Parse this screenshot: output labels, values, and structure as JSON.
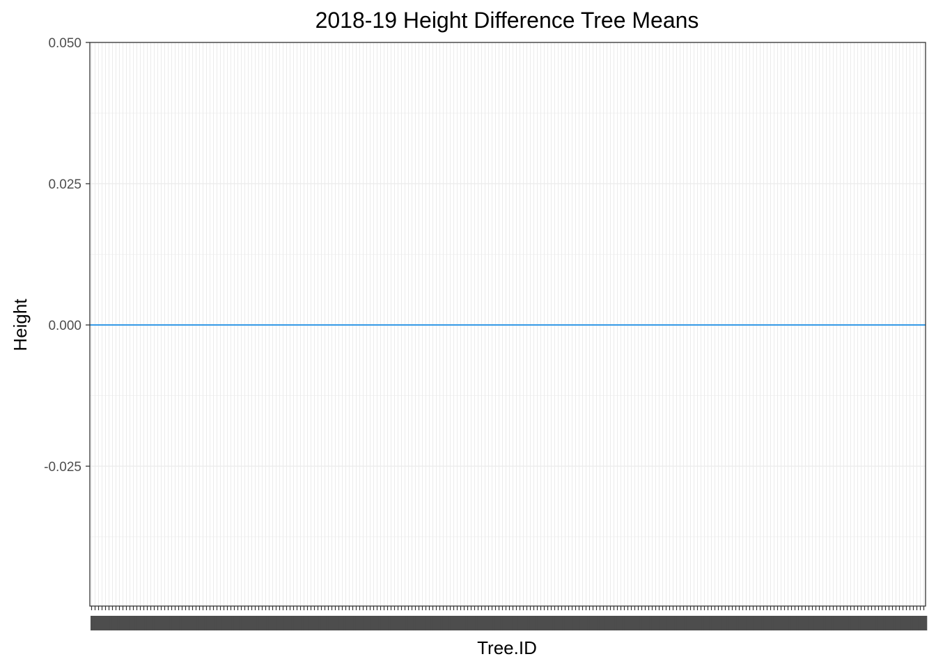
{
  "chart_data": {
    "type": "line",
    "title": "2018-19 Height Difference Tree Means",
    "xlabel": "Tree.ID",
    "ylabel": "Height",
    "ylim": [
      -0.05,
      0.05
    ],
    "yticks": [
      0.05,
      0.025,
      0.0,
      -0.025
    ],
    "ytick_labels": [
      "0.050",
      "0.025",
      "0.000",
      "-0.025"
    ],
    "x_category_count": 240,
    "grid": true,
    "series": [
      {
        "values": [
          0.0
        ],
        "color": "#3399e6"
      }
    ],
    "colors": {
      "line": "#3399e6",
      "grid": "#ebebeb",
      "panel_border": "#333333",
      "tick_text": "#4d4d4d"
    }
  }
}
